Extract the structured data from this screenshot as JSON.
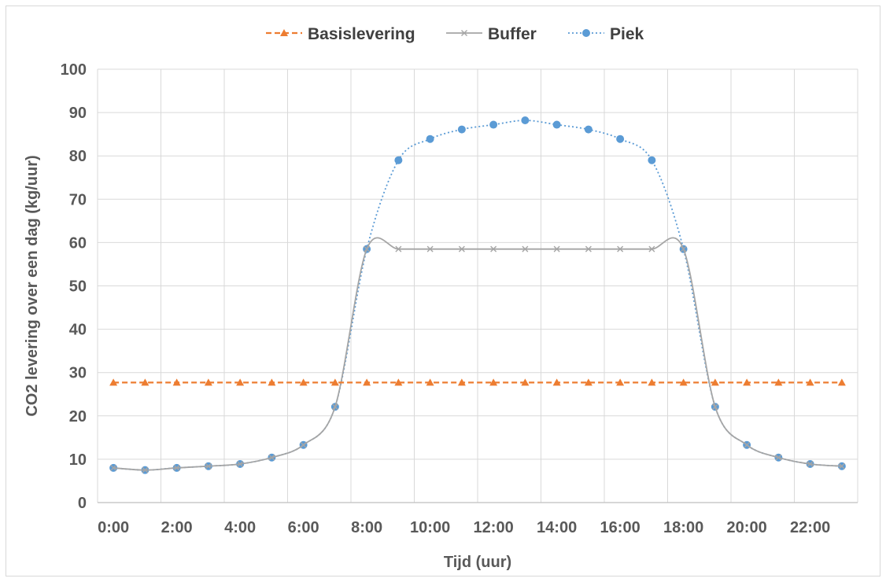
{
  "chart_data": {
    "type": "line",
    "title": "",
    "xlabel": "Tijd (uur)",
    "ylabel": "CO2 levering over een dag (kg/uur)",
    "ylim": [
      0,
      100
    ],
    "yticks": [
      "0",
      "10",
      "20",
      "30",
      "40",
      "50",
      "60",
      "70",
      "80",
      "90",
      "100"
    ],
    "x": [
      "0:00",
      "1:00",
      "2:00",
      "3:00",
      "4:00",
      "5:00",
      "6:00",
      "7:00",
      "8:00",
      "9:00",
      "10:00",
      "11:00",
      "12:00",
      "13:00",
      "14:00",
      "15:00",
      "16:00",
      "17:00",
      "18:00",
      "19:00",
      "20:00",
      "21:00",
      "22:00",
      "23:00"
    ],
    "xtick_labels": [
      "0:00",
      "2:00",
      "4:00",
      "6:00",
      "8:00",
      "10:00",
      "12:00",
      "14:00",
      "16:00",
      "18:00",
      "20:00",
      "22:00"
    ],
    "grid": true,
    "legend_position": "top",
    "series": [
      {
        "name": "Basislevering",
        "color": "#ed7d31",
        "line_style": "dashed",
        "marker": "triangle",
        "values": [
          27.7,
          27.7,
          27.7,
          27.7,
          27.7,
          27.7,
          27.7,
          27.7,
          27.7,
          27.7,
          27.7,
          27.7,
          27.7,
          27.7,
          27.7,
          27.7,
          27.7,
          27.7,
          27.7,
          27.7,
          27.7,
          27.7,
          27.7,
          27.7
        ]
      },
      {
        "name": "Buffer",
        "color": "#a5a5a5",
        "line_style": "solid",
        "marker": "x",
        "values": [
          8.0,
          7.5,
          8.0,
          8.4,
          8.9,
          10.4,
          13.3,
          22.1,
          58.5,
          58.5,
          58.5,
          58.5,
          58.5,
          58.5,
          58.5,
          58.5,
          58.5,
          58.5,
          58.5,
          22.1,
          13.3,
          10.4,
          8.9,
          8.4
        ]
      },
      {
        "name": "Piek",
        "color": "#5b9bd5",
        "line_style": "dotted",
        "marker": "circle",
        "values": [
          8.0,
          7.5,
          8.0,
          8.4,
          8.9,
          10.4,
          13.3,
          22.1,
          58.5,
          79.0,
          83.9,
          86.1,
          87.2,
          88.2,
          87.2,
          86.1,
          83.9,
          79.0,
          58.5,
          22.1,
          13.3,
          10.4,
          8.9,
          8.4
        ]
      }
    ]
  }
}
